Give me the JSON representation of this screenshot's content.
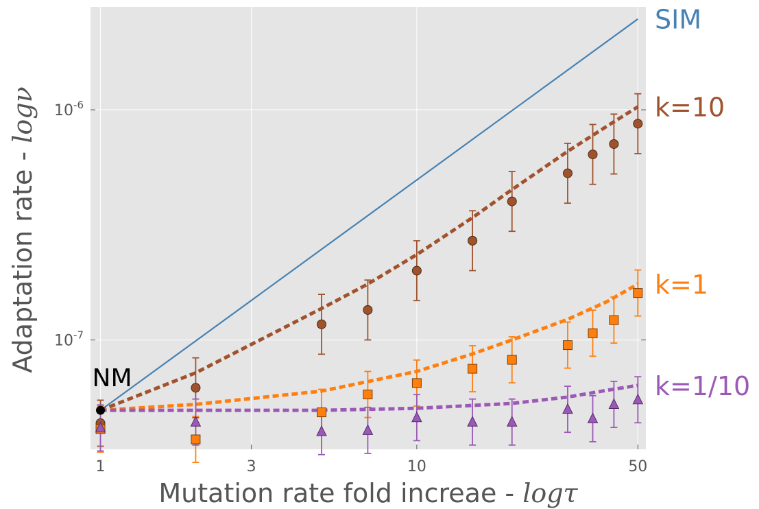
{
  "chart_data": {
    "type": "scatter",
    "xscale": "log",
    "yscale": "log",
    "xlim": [
      0.93,
      53
    ],
    "ylim": [
      3.35e-08,
      2.8e-06
    ],
    "grid": true,
    "xlabel_text": "Mutation rate fold increae - ",
    "xlabel_math": "logτ",
    "ylabel_text": "Adaptation rate - ",
    "ylabel_math": "logν",
    "x_ticks": [
      {
        "value": 1,
        "label": "1"
      },
      {
        "value": 3,
        "label": "3"
      },
      {
        "value": 10,
        "label": "10"
      },
      {
        "value": 50,
        "label": "50"
      }
    ],
    "y_ticks": [
      {
        "value": 1e-07,
        "base": "10",
        "exp": "-7"
      },
      {
        "value": 1e-06,
        "base": "10",
        "exp": "-6"
      }
    ],
    "nm_point": {
      "label": "NM",
      "x": 1,
      "y": 4.95e-08,
      "color": "#000000"
    },
    "series": [
      {
        "name": "SIM",
        "color": "#4682b4",
        "style": "solid",
        "line": {
          "x": [
            1,
            50
          ],
          "y": [
            4.95e-08,
            2.48e-06
          ]
        }
      },
      {
        "name": "k=10",
        "color": "#a0522d",
        "marker": "circle",
        "line": {
          "x": [
            1,
            2,
            5,
            7,
            10,
            15,
            20,
            30,
            40,
            50
          ],
          "y": [
            4.95e-08,
            7.2e-08,
            1.37e-07,
            1.75e-07,
            2.35e-07,
            3.4e-07,
            4.5e-07,
            6.6e-07,
            8.5e-07,
            1.03e-06
          ]
        },
        "points": [
          {
            "x": 1,
            "y": 4.35e-08,
            "err": 0.1
          },
          {
            "x": 2,
            "y": 6.2e-08,
            "err": 0.13
          },
          {
            "x": 5,
            "y": 1.17e-07,
            "err": 0.13
          },
          {
            "x": 7,
            "y": 1.35e-07,
            "err": 0.13
          },
          {
            "x": 10,
            "y": 2e-07,
            "err": 0.13
          },
          {
            "x": 15,
            "y": 2.7e-07,
            "err": 0.13
          },
          {
            "x": 20,
            "y": 4e-07,
            "err": 0.13
          },
          {
            "x": 30,
            "y": 5.3e-07,
            "err": 0.13
          },
          {
            "x": 36,
            "y": 6.4e-07,
            "err": 0.13
          },
          {
            "x": 42,
            "y": 7.1e-07,
            "err": 0.13
          },
          {
            "x": 50,
            "y": 8.7e-07,
            "err": 0.13
          }
        ]
      },
      {
        "name": "k=1",
        "color": "#ff7f0e",
        "marker": "square",
        "line": {
          "x": [
            1,
            2,
            5,
            10,
            15,
            20,
            30,
            40,
            50
          ],
          "y": [
            4.95e-08,
            5.25e-08,
            6e-08,
            7.3e-08,
            8.7e-08,
            1e-07,
            1.23e-07,
            1.47e-07,
            1.75e-07
          ]
        },
        "points": [
          {
            "x": 1,
            "y": 4.1e-08,
            "err": 0.1
          },
          {
            "x": 2,
            "y": 3.7e-08,
            "err": 0.1
          },
          {
            "x": 5,
            "y": 4.85e-08,
            "err": 0.1
          },
          {
            "x": 7,
            "y": 5.8e-08,
            "err": 0.1
          },
          {
            "x": 10,
            "y": 6.5e-08,
            "err": 0.1
          },
          {
            "x": 15,
            "y": 7.5e-08,
            "err": 0.1
          },
          {
            "x": 20,
            "y": 8.2e-08,
            "err": 0.1
          },
          {
            "x": 30,
            "y": 9.5e-08,
            "err": 0.1
          },
          {
            "x": 36,
            "y": 1.07e-07,
            "err": 0.1
          },
          {
            "x": 42,
            "y": 1.22e-07,
            "err": 0.1
          },
          {
            "x": 50,
            "y": 1.6e-07,
            "err": 0.1
          }
        ]
      },
      {
        "name": "k=1/10",
        "color": "#9b59b6",
        "marker": "triangle",
        "line": {
          "x": [
            1,
            5,
            10,
            20,
            30,
            40,
            50
          ],
          "y": [
            4.95e-08,
            4.95e-08,
            5.05e-08,
            5.3e-08,
            5.65e-08,
            6.05e-08,
            6.35e-08
          ]
        },
        "points": [
          {
            "x": 1,
            "y": 4.15e-08,
            "err": 0.1
          },
          {
            "x": 2,
            "y": 4.4e-08,
            "err": 0.1
          },
          {
            "x": 5,
            "y": 4e-08,
            "err": 0.1
          },
          {
            "x": 7,
            "y": 4.05e-08,
            "err": 0.1
          },
          {
            "x": 10,
            "y": 4.6e-08,
            "err": 0.1
          },
          {
            "x": 15,
            "y": 4.4e-08,
            "err": 0.1
          },
          {
            "x": 20,
            "y": 4.4e-08,
            "err": 0.1
          },
          {
            "x": 30,
            "y": 5e-08,
            "err": 0.1
          },
          {
            "x": 36,
            "y": 4.55e-08,
            "err": 0.1
          },
          {
            "x": 42,
            "y": 5.25e-08,
            "err": 0.1
          },
          {
            "x": 50,
            "y": 5.5e-08,
            "err": 0.1
          }
        ]
      }
    ]
  }
}
